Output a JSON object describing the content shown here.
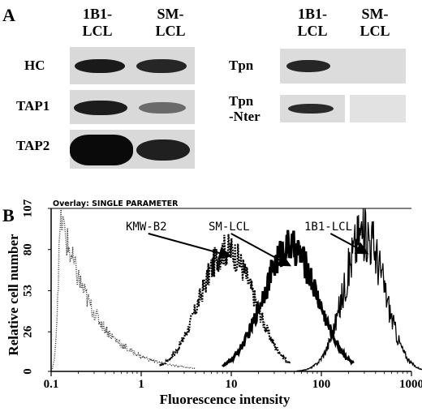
{
  "panel_a": {
    "letter": "A",
    "left_columns": [
      "1B1-\nLCL",
      "SM-\nLCL"
    ],
    "right_columns": [
      "1B1-\nLCL",
      "SM-\nLCL"
    ],
    "left_rows": [
      "HC",
      "TAP1",
      "TAP2"
    ],
    "right_rows": [
      "Tpn",
      "Tpn\n-Nter"
    ]
  },
  "panel_b": {
    "letter": "B",
    "overlay_title": "Overlay: SINGLE PARAMETER",
    "annotations": [
      "KMW-B2",
      "SM-LCL",
      "1B1-LCL"
    ]
  },
  "chart_data": {
    "type": "histogram",
    "title": "Overlay: SINGLE PARAMETER",
    "xlabel": "Fluorescence intensity",
    "ylabel": "Relative cell number",
    "x_scale": "log",
    "xlim": [
      0.1,
      1000
    ],
    "ylim": [
      0,
      107
    ],
    "x_ticks": [
      "0.1",
      "1",
      "10",
      "100",
      "1000"
    ],
    "y_ticks": [
      "0",
      "26",
      "53",
      "80",
      "107"
    ],
    "series": [
      {
        "name": "KMW-B2",
        "style": "dashed",
        "peak_x": 9,
        "peak_y": 80
      },
      {
        "name": "SM-LCL",
        "style": "bold",
        "peak_x": 45,
        "peak_y": 82
      },
      {
        "name": "1B1-LCL",
        "style": "thin",
        "peak_x": 300,
        "peak_y": 92
      },
      {
        "name": "",
        "style": "dotted",
        "peak_x": 0.13,
        "peak_y": 100
      }
    ]
  }
}
